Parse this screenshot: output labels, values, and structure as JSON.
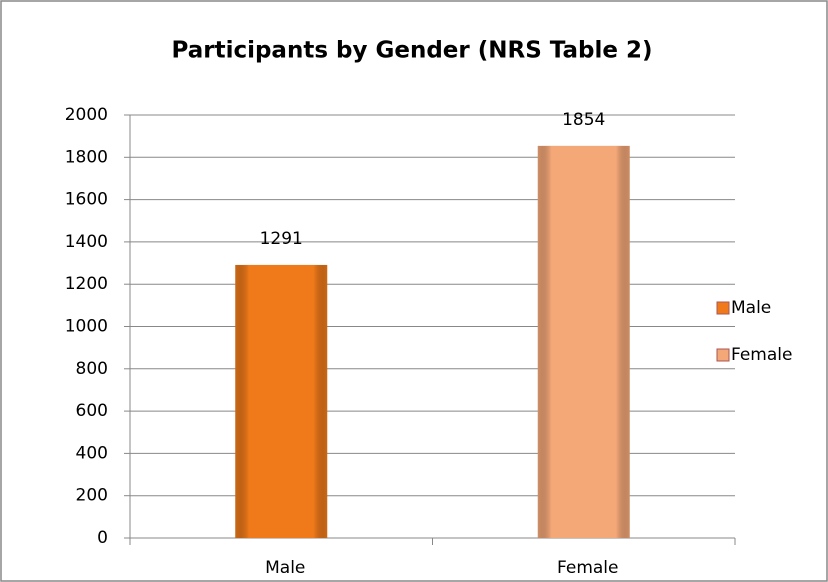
{
  "chart_data": {
    "type": "bar",
    "title": "Participants by Gender (NRS Table 2)",
    "categories": [
      "Male",
      "Female"
    ],
    "values": [
      1291,
      1854
    ],
    "colors": [
      "#f07a1a",
      "#f4a878"
    ],
    "ylim": [
      0,
      2000
    ],
    "yticks": [
      0,
      200,
      400,
      600,
      800,
      1000,
      1200,
      1400,
      1600,
      1800,
      2000
    ],
    "grid": true,
    "legend": "right"
  }
}
